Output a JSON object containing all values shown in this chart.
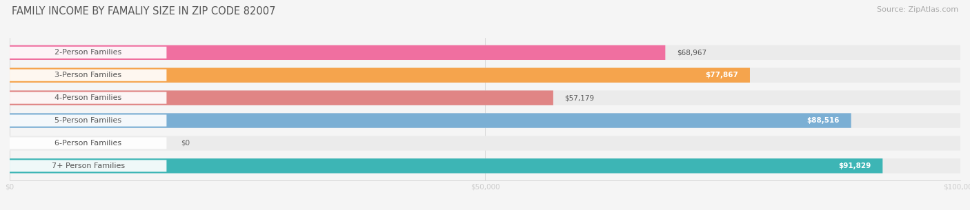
{
  "title": "FAMILY INCOME BY FAMALIY SIZE IN ZIP CODE 82007",
  "source": "Source: ZipAtlas.com",
  "categories": [
    "2-Person Families",
    "3-Person Families",
    "4-Person Families",
    "5-Person Families",
    "6-Person Families",
    "7+ Person Families"
  ],
  "values": [
    68967,
    77867,
    57179,
    88516,
    0,
    91829
  ],
  "bar_colors": [
    "#f06fa0",
    "#f5a44d",
    "#e08585",
    "#7bafd4",
    "#c9a8d4",
    "#3db5b5"
  ],
  "bar_bg_color": "#ebebeb",
  "xlim": [
    0,
    100000
  ],
  "xticks": [
    0,
    50000,
    100000
  ],
  "xtick_labels": [
    "$0",
    "$50,000",
    "$100,000"
  ],
  "title_fontsize": 10.5,
  "source_fontsize": 8,
  "label_fontsize": 8,
  "value_fontsize": 7.5,
  "bar_height": 0.65,
  "background_color": "#f5f5f5",
  "value_inside_threshold": 70000
}
